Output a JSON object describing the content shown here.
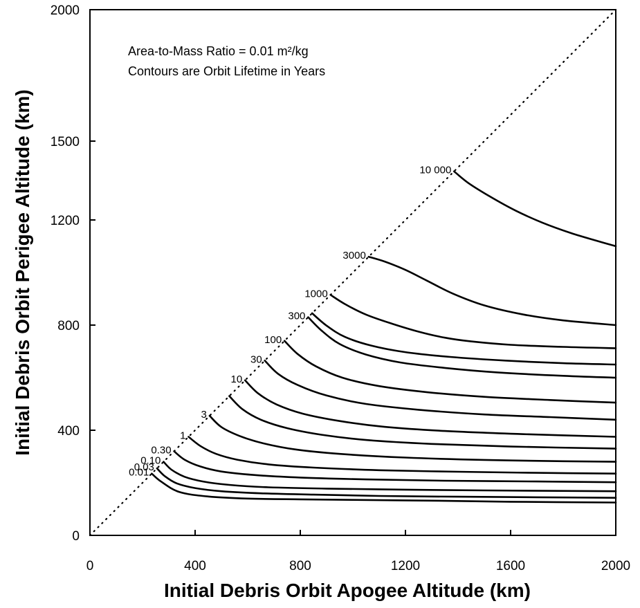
{
  "chart_data": {
    "type": "line",
    "title": "",
    "xlabel": "Initial Debris Orbit Apogee Altitude (km)",
    "ylabel": "Initial Debris Orbit Perigee Altitude (km)",
    "xlim": [
      0,
      2000
    ],
    "ylim": [
      0,
      2000
    ],
    "xticks": [
      0,
      400,
      800,
      1200,
      1600,
      2000
    ],
    "yticks": [
      0,
      400,
      800,
      1200,
      1500,
      2000
    ],
    "grid": false,
    "legend": "none",
    "annotations": [
      "Area-to-Mass Ratio = 0.01 m²/kg",
      "Contours are Orbit Lifetime in Years"
    ],
    "reference_line": {
      "style": "dotted",
      "x": [
        0,
        2000
      ],
      "y": [
        0,
        2000
      ]
    },
    "series": [
      {
        "name": "0.01",
        "x": [
          235,
          270,
          340,
          450,
          600,
          800,
          1000,
          1300,
          1600,
          2000
        ],
        "y": [
          235,
          205,
          165,
          148,
          140,
          137,
          135,
          132,
          128,
          125
        ]
      },
      {
        "name": "0.03",
        "x": [
          255,
          285,
          330,
          400,
          500,
          650,
          850,
          1100,
          1400,
          1700,
          2000
        ],
        "y": [
          255,
          225,
          198,
          180,
          168,
          160,
          155,
          150,
          147,
          145,
          143
        ]
      },
      {
        "name": "0.10",
        "x": [
          280,
          310,
          360,
          430,
          530,
          680,
          900,
          1200,
          1500,
          2000
        ],
        "y": [
          280,
          250,
          223,
          205,
          192,
          183,
          178,
          174,
          171,
          168
        ]
      },
      {
        "name": "0.30",
        "x": [
          320,
          360,
          420,
          500,
          620,
          800,
          1050,
          1350,
          1700,
          2000
        ],
        "y": [
          320,
          288,
          262,
          243,
          230,
          220,
          213,
          208,
          205,
          202
        ]
      },
      {
        "name": "1",
        "x": [
          375,
          420,
          480,
          560,
          680,
          850,
          1100,
          1400,
          1700,
          2000
        ],
        "y": [
          375,
          340,
          310,
          288,
          270,
          258,
          248,
          242,
          238,
          235
        ]
      },
      {
        "name": "3",
        "x": [
          455,
          500,
          570,
          660,
          780,
          950,
          1200,
          1500,
          1800,
          2000
        ],
        "y": [
          455,
          412,
          378,
          350,
          327,
          310,
          296,
          287,
          282,
          280
        ]
      },
      {
        "name": "",
        "x": [
          530,
          580,
          650,
          750,
          880,
          1050,
          1300,
          1600,
          2000
        ],
        "y": [
          530,
          480,
          440,
          408,
          383,
          363,
          348,
          338,
          330
        ]
      },
      {
        "name": "10",
        "x": [
          590,
          640,
          710,
          810,
          950,
          1120,
          1350,
          1650,
          2000
        ],
        "y": [
          590,
          540,
          498,
          463,
          435,
          413,
          397,
          385,
          375
        ]
      },
      {
        "name": "30",
        "x": [
          665,
          715,
          790,
          900,
          1050,
          1250,
          1500,
          1750,
          2000
        ],
        "y": [
          665,
          615,
          572,
          532,
          500,
          478,
          460,
          450,
          440
        ]
      },
      {
        "name": "100",
        "x": [
          740,
          790,
          860,
          960,
          1100,
          1280,
          1500,
          1750,
          2000
        ],
        "y": [
          740,
          690,
          643,
          600,
          568,
          545,
          527,
          515,
          505
        ]
      },
      {
        "name": "300",
        "x": [
          830,
          880,
          950,
          1050,
          1180,
          1350,
          1550,
          1800,
          2000
        ],
        "y": [
          830,
          780,
          728,
          688,
          658,
          637,
          620,
          607,
          600
        ]
      },
      {
        "name": "",
        "x": [
          845,
          900,
          970,
          1070,
          1200,
          1370,
          1580,
          1800,
          2000
        ],
        "y": [
          845,
          798,
          755,
          722,
          697,
          679,
          665,
          655,
          650
        ]
      },
      {
        "name": "1000",
        "x": [
          915,
          970,
          1050,
          1150,
          1250,
          1350,
          1450,
          1600,
          1800,
          2000
        ],
        "y": [
          915,
          880,
          840,
          805,
          775,
          752,
          738,
          725,
          717,
          712
        ]
      },
      {
        "name": "3000",
        "x": [
          1060,
          1120,
          1200,
          1280,
          1380,
          1500,
          1650,
          1800,
          2000
        ],
        "y": [
          1060,
          1042,
          1010,
          970,
          920,
          875,
          840,
          818,
          800
        ]
      },
      {
        "name": "10 000",
        "x": [
          1385,
          1440,
          1520,
          1620,
          1720,
          1830,
          1930,
          2000
        ],
        "y": [
          1385,
          1340,
          1290,
          1235,
          1190,
          1150,
          1120,
          1100
        ]
      }
    ]
  }
}
